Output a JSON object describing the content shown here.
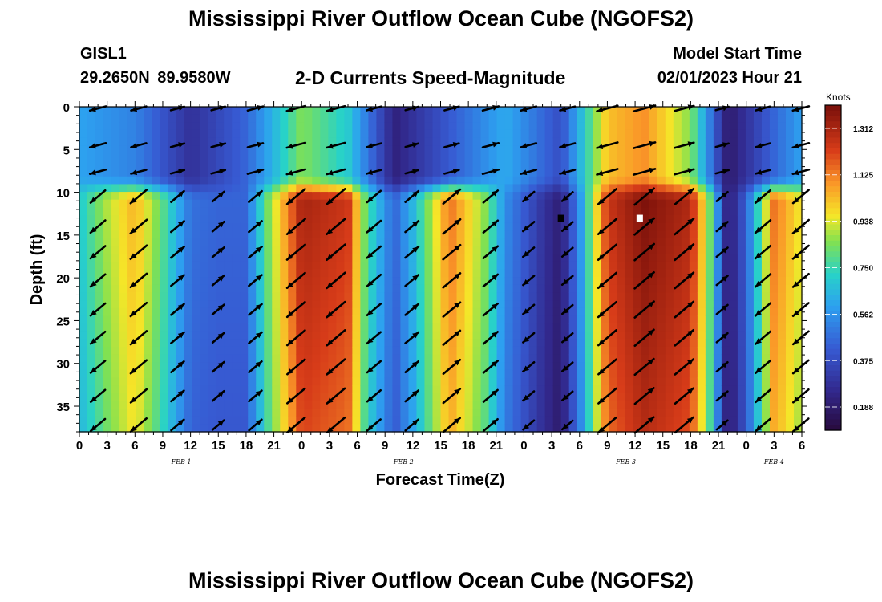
{
  "header": {
    "title": "Mississippi River Outflow Ocean Cube (NGOFS2)",
    "station": "GISL1",
    "coords": "29.2650N  89.9580W",
    "subtitle": "2-D Currents Speed-Magnitude",
    "start_label": "Model Start Time",
    "start_value": "02/01/2023 Hour 21"
  },
  "footer": {
    "title": "Mississippi River Outflow Ocean Cube (NGOFS2)"
  },
  "chart_data": {
    "type": "heatmap",
    "title": "2-D Currents Speed-Magnitude",
    "xlabel": "Forecast Time(Z)",
    "ylabel": "Depth (ft)",
    "x_range_hours": [
      0,
      78
    ],
    "y_range_ft": [
      0,
      38
    ],
    "y_ticks": [
      0,
      5,
      10,
      15,
      20,
      25,
      30,
      35
    ],
    "x_tick_labels": [
      "0",
      "3",
      "6",
      "9",
      "12",
      "15",
      "18",
      "21",
      "0",
      "3",
      "6",
      "9",
      "12",
      "15",
      "18",
      "21",
      "0",
      "3",
      "6",
      "9",
      "12",
      "15",
      "18",
      "21",
      "0",
      "3",
      "6"
    ],
    "date_labels": [
      {
        "label": "FEB 1",
        "hour": 11
      },
      {
        "label": "FEB 2",
        "hour": 35
      },
      {
        "label": "FEB 3",
        "hour": 59
      },
      {
        "label": "FEB 4",
        "hour": 75
      }
    ],
    "colorbar": {
      "unit": "Knots",
      "min": 0.094,
      "max": 1.406,
      "ticks": [
        "1.312",
        "1.125",
        "0.938",
        "0.750",
        "0.562",
        "0.375",
        "0.188"
      ]
    },
    "surface_speed_profile": [
      {
        "hour": 0,
        "knots": 0.6
      },
      {
        "hour": 6,
        "knots": 0.52
      },
      {
        "hour": 12,
        "knots": 0.28
      },
      {
        "hour": 18,
        "knots": 0.45
      },
      {
        "hour": 24,
        "knots": 0.85
      },
      {
        "hour": 29,
        "knots": 0.7
      },
      {
        "hour": 34,
        "knots": 0.22
      },
      {
        "hour": 40,
        "knots": 0.42
      },
      {
        "hour": 46,
        "knots": 0.62
      },
      {
        "hour": 52,
        "knots": 0.38
      },
      {
        "hour": 57,
        "knots": 1.02
      },
      {
        "hour": 61,
        "knots": 1.1
      },
      {
        "hour": 66,
        "knots": 0.85
      },
      {
        "hour": 70,
        "knots": 0.18
      },
      {
        "hour": 74,
        "knots": 0.4
      },
      {
        "hour": 78,
        "knots": 0.6
      }
    ],
    "lower_speed_profile": [
      {
        "hour": 0,
        "knots": 0.7
      },
      {
        "hour": 3,
        "knots": 0.9
      },
      {
        "hour": 6,
        "knots": 1.05
      },
      {
        "hour": 9,
        "knots": 0.8
      },
      {
        "hour": 12,
        "knots": 0.48
      },
      {
        "hour": 15,
        "knots": 0.45
      },
      {
        "hour": 18,
        "knots": 0.45
      },
      {
        "hour": 20,
        "knots": 0.8
      },
      {
        "hour": 24,
        "knots": 1.32
      },
      {
        "hour": 29,
        "knots": 1.25
      },
      {
        "hour": 31,
        "knots": 0.8
      },
      {
        "hour": 34,
        "knots": 0.45
      },
      {
        "hour": 36,
        "knots": 0.65
      },
      {
        "hour": 40,
        "knots": 1.15
      },
      {
        "hour": 44,
        "knots": 0.85
      },
      {
        "hour": 46,
        "knots": 0.55
      },
      {
        "hour": 50,
        "knots": 0.3
      },
      {
        "hour": 52,
        "knots": 0.2
      },
      {
        "hour": 54,
        "knots": 0.55
      },
      {
        "hour": 57,
        "knots": 1.25
      },
      {
        "hour": 61,
        "knots": 1.4
      },
      {
        "hour": 66,
        "knots": 1.3
      },
      {
        "hour": 68,
        "knots": 0.85
      },
      {
        "hour": 70,
        "knots": 0.18
      },
      {
        "hour": 72,
        "knots": 0.45
      },
      {
        "hour": 75,
        "knots": 1.15
      },
      {
        "hour": 78,
        "knots": 0.95
      }
    ],
    "vector_rows_ft": [
      0.2,
      4.5,
      7.6,
      10.5,
      14,
      17,
      20.3,
      23.7,
      27,
      30.4,
      33.8,
      37.2
    ],
    "vector_cols_hours": [
      2,
      6.4,
      10.6,
      15,
      19,
      23.4,
      27.7,
      31.8,
      35.9,
      40.2,
      44.4,
      48.5,
      52.7,
      57,
      61,
      65.3,
      69.4,
      73.8,
      77.9
    ],
    "markers": [
      {
        "hour": 52,
        "depth_ft": 13,
        "color": "black"
      },
      {
        "hour": 60.5,
        "depth_ft": 13,
        "color": "white"
      }
    ]
  }
}
